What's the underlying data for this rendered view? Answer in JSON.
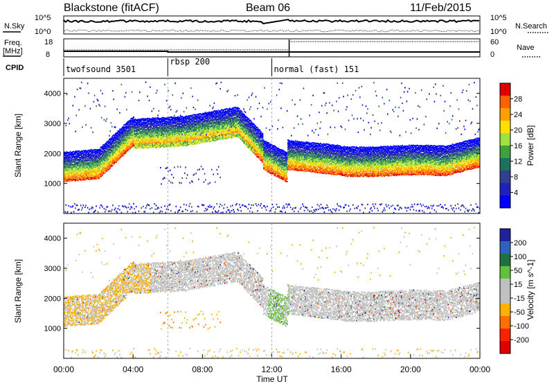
{
  "header": {
    "station": "Blackstone (fitACF)",
    "beam": "Beam 06",
    "date": "11/Feb/2015"
  },
  "top_panels": {
    "nsky_label": "N.Sky",
    "nsearch_label": "N.Search",
    "freq_label_1": "Freq.",
    "freq_label_2": "[MHz]",
    "nave_label": "Nave",
    "cpid_label": "CPID",
    "noise_ticks": [
      "10^5",
      "10^0"
    ],
    "freq_ticks": [
      "18",
      "8"
    ],
    "nave_ticks": [
      "60",
      "0"
    ],
    "cpid_segments": [
      {
        "name": "twofsound 3501",
        "start_hour": 0,
        "end_hour": 6.0
      },
      {
        "name": "rbsp 200",
        "start_hour": 6.0,
        "end_hour": 12.0
      },
      {
        "name": "normal (fast) 151",
        "start_hour": 12.0,
        "end_hour": 24
      }
    ],
    "nave_step_hour": 13.0
  },
  "chart_data": [
    {
      "type": "heatmap",
      "name": "power",
      "ylabel": "Slant Range [km]",
      "xlabel": "",
      "ylim": [
        0,
        4500
      ],
      "xlim": [
        0,
        24
      ],
      "yticks": [
        1000,
        2000,
        3000,
        4000
      ],
      "colorbar": {
        "label": "Power [dB]",
        "ticks": [
          "28",
          "24",
          "20",
          "16",
          "12",
          "8",
          "4"
        ],
        "colors": [
          "#e00000",
          "#ff6000",
          "#ffa000",
          "#ffe000",
          "#a0e040",
          "#40a040",
          "#207060",
          "#304090",
          "#2020c0",
          "#0000ff"
        ]
      }
    },
    {
      "type": "heatmap",
      "name": "velocity",
      "ylabel": "Slant Range [km]",
      "xlabel": "Time UT",
      "ylim": [
        0,
        4500
      ],
      "xlim": [
        0,
        24
      ],
      "yticks": [
        1000,
        2000,
        3000,
        4000
      ],
      "xticks": [
        "00:00",
        "04:00",
        "08:00",
        "12:00",
        "16:00",
        "20:00",
        "00:00"
      ],
      "colorbar": {
        "label": "Velocity [m s^-1]",
        "ticks": [
          "200",
          "100",
          "50",
          "15",
          "-15",
          "-50",
          "-100",
          "-200"
        ],
        "colors": [
          "#2020a0",
          "#3060c0",
          "#207040",
          "#60c040",
          "#c0c0c0",
          "#c0c0c0",
          "#ffb000",
          "#ff7000",
          "#ff2000",
          "#e00000"
        ]
      }
    }
  ]
}
